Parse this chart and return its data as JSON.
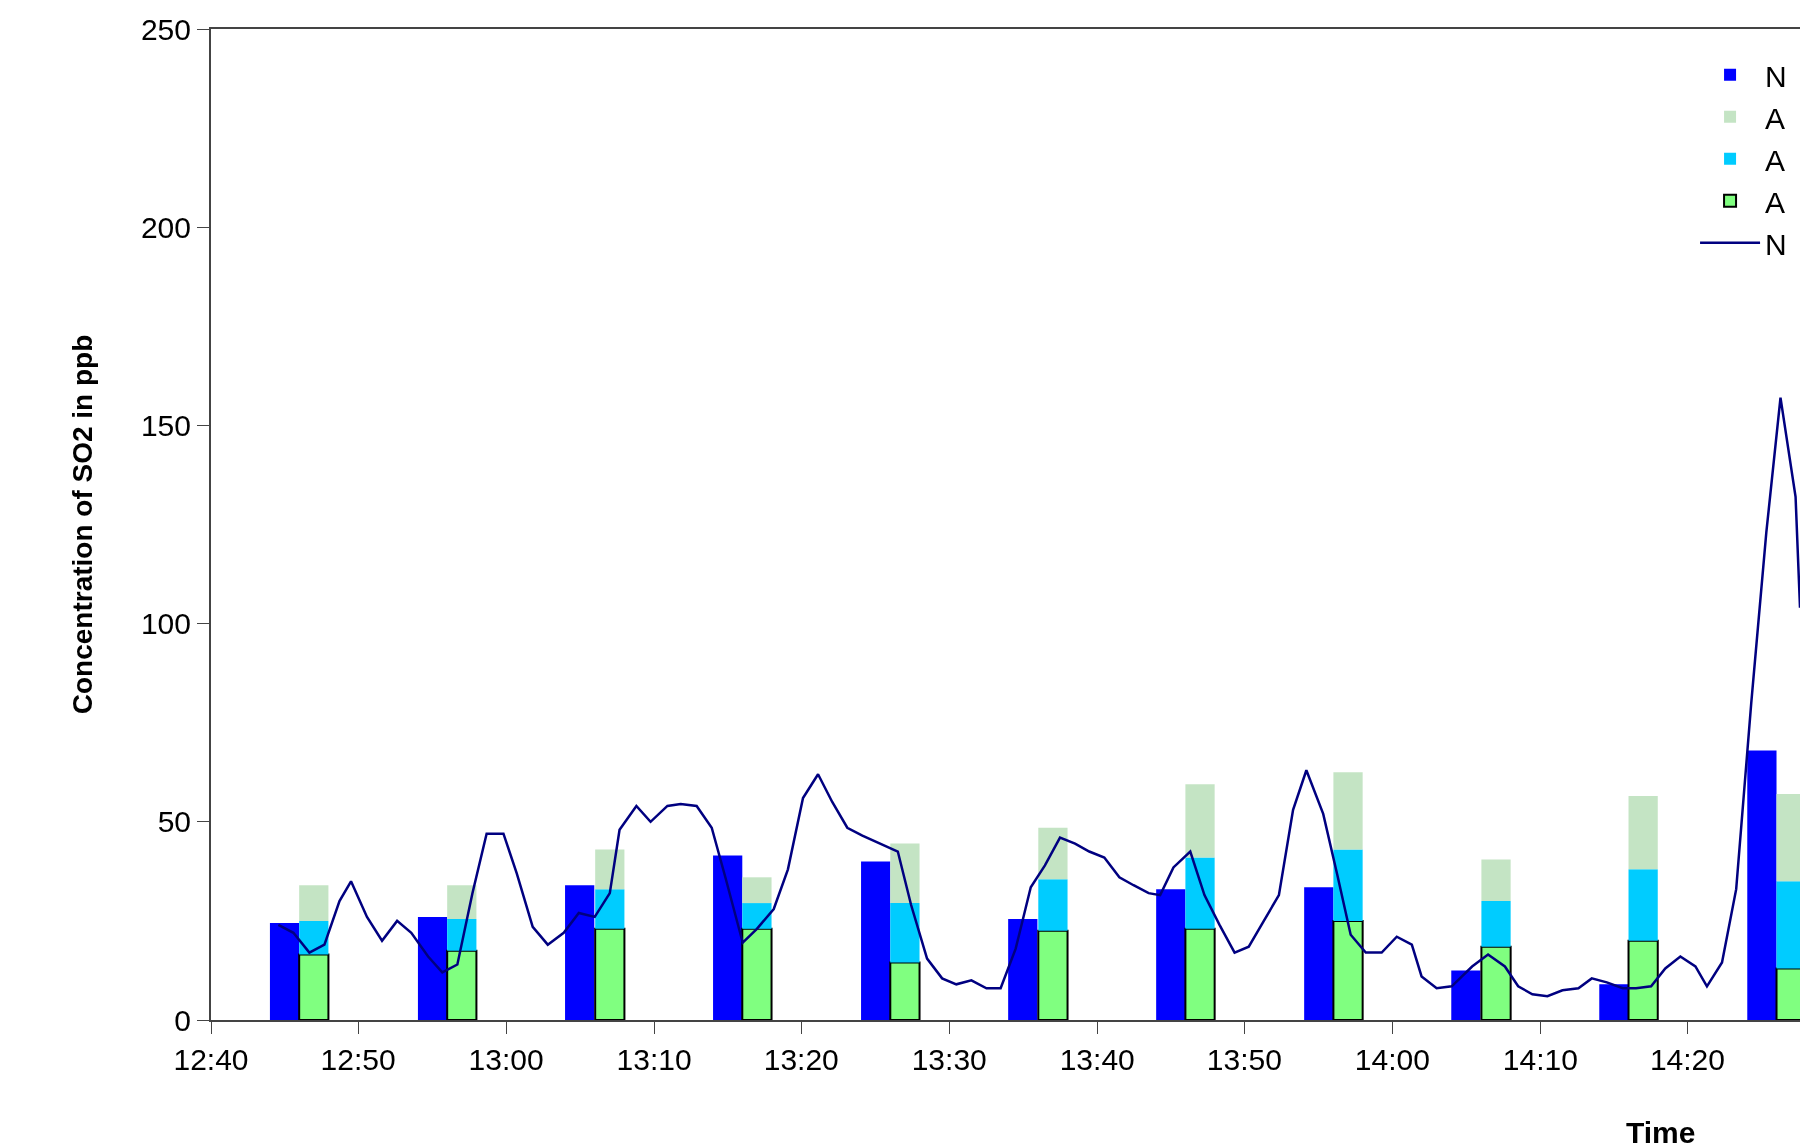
{
  "chart_data": {
    "type": "bar",
    "stacked": true,
    "xlabel": "Time",
    "ylabel": "Concentration of SO2 in ppb",
    "xlim": [
      12.667,
      14.46
    ],
    "xticks": [
      {
        "value": 12.667,
        "label": "12:40"
      },
      {
        "value": 12.833,
        "label": "12:50"
      },
      {
        "value": 13.0,
        "label": "13:00"
      },
      {
        "value": 13.167,
        "label": "13:10"
      },
      {
        "value": 13.333,
        "label": "13:20"
      },
      {
        "value": 13.5,
        "label": "13:30"
      },
      {
        "value": 13.667,
        "label": "13:40"
      },
      {
        "value": 13.833,
        "label": "13:50"
      },
      {
        "value": 14.0,
        "label": "14:00"
      },
      {
        "value": 14.167,
        "label": "14:10"
      },
      {
        "value": 14.333,
        "label": "14:20"
      }
    ],
    "ylim": [
      0,
      250
    ],
    "yticks": [
      0,
      50,
      100,
      150,
      200,
      250
    ],
    "legend": "top right",
    "x": [
      12.75,
      12.783,
      12.917,
      12.95,
      13.083,
      13.117,
      13.25,
      13.283,
      13.417,
      13.45,
      13.583,
      13.617,
      13.75,
      13.783,
      13.917,
      13.95,
      14.083,
      14.117,
      14.25,
      14.283,
      14.417,
      14.45
    ],
    "series": [
      {
        "name": "N",
        "color": "#0000ff",
        "values": [
          24.5,
          null,
          26,
          null,
          34,
          null,
          41.5,
          null,
          40,
          null,
          25.5,
          null,
          33,
          null,
          33.5,
          null,
          12.5,
          null,
          9,
          null,
          68,
          null
        ]
      },
      {
        "name": "A",
        "color": "#80ff80",
        "values": [
          null,
          16.5,
          null,
          17.5,
          null,
          23,
          null,
          23,
          null,
          14.5,
          null,
          22.5,
          null,
          23,
          null,
          25,
          null,
          18.5,
          null,
          20,
          null,
          13
        ]
      },
      {
        "name": "A",
        "color": "#00ccff",
        "values": [
          null,
          8.5,
          null,
          8,
          null,
          10,
          null,
          6.5,
          null,
          15,
          null,
          13,
          null,
          18,
          null,
          18,
          null,
          11.5,
          null,
          18,
          null,
          22
        ]
      },
      {
        "name": "A",
        "color": "#c4e4c4",
        "values": [
          null,
          9,
          null,
          8.5,
          null,
          10,
          null,
          6.5,
          null,
          15,
          null,
          13,
          null,
          18.5,
          null,
          19.5,
          null,
          10.5,
          null,
          18.5,
          null,
          22
        ]
      },
      {
        "name": "N",
        "type": "line",
        "color": "#000080",
        "marker": "none",
        "line_style": "solid",
        "x": [
          12.743,
          12.76,
          12.778,
          12.795,
          12.812,
          12.825,
          12.843,
          12.86,
          12.877,
          12.893,
          12.912,
          12.928,
          12.945,
          12.962,
          12.978,
          12.997,
          13.012,
          13.03,
          13.047,
          13.065,
          13.082,
          13.1,
          13.117,
          13.128,
          13.147,
          13.163,
          13.182,
          13.197,
          13.215,
          13.232,
          13.248,
          13.267,
          13.283,
          13.302,
          13.318,
          13.335,
          13.352,
          13.368,
          13.385,
          13.402,
          13.442,
          13.457,
          13.475,
          13.492,
          13.508,
          13.525,
          13.542,
          13.558,
          13.575,
          13.592,
          13.608,
          13.625,
          13.642,
          13.658,
          13.675,
          13.692,
          13.708,
          13.725,
          13.738,
          13.753,
          13.772,
          13.788,
          13.805,
          13.822,
          13.838,
          13.855,
          13.872,
          13.888,
          13.903,
          13.922,
          13.938,
          13.953,
          13.97,
          13.988,
          14.005,
          14.022,
          14.033,
          14.05,
          14.067,
          14.09,
          14.108,
          14.127,
          14.142,
          14.158,
          14.175,
          14.192,
          14.21,
          14.225,
          14.242,
          14.26,
          14.275,
          14.292,
          14.308,
          14.325,
          14.342,
          14.355,
          14.372,
          14.388,
          14.405,
          14.422,
          14.438,
          14.455,
          14.46
        ],
        "values": [
          24,
          22,
          17,
          19,
          30,
          35,
          26,
          20,
          25,
          22,
          16,
          12,
          14,
          32,
          47,
          47,
          37,
          23.5,
          19,
          22,
          27,
          26,
          32,
          48,
          54,
          50,
          54,
          54.5,
          54,
          48.5,
          35.5,
          19.5,
          23,
          28,
          38,
          56,
          62,
          55,
          48.5,
          46.5,
          42.5,
          29,
          15.5,
          10.5,
          9,
          10,
          8,
          8,
          18,
          33.5,
          39,
          46,
          44.5,
          42.5,
          41,
          36,
          34,
          32,
          31.5,
          38.5,
          42.5,
          31.5,
          24,
          17,
          18.5,
          25,
          31.5,
          53,
          63,
          52,
          36.5,
          21.5,
          17,
          17,
          21,
          19,
          11,
          8,
          8.5,
          13.5,
          16.5,
          13.5,
          8.5,
          6.5,
          6,
          7.5,
          8,
          10.5,
          9.5,
          8,
          8,
          8.5,
          13,
          16,
          13.5,
          8.5,
          14.5,
          33,
          80,
          123,
          157,
          132,
          104
        ]
      }
    ]
  }
}
